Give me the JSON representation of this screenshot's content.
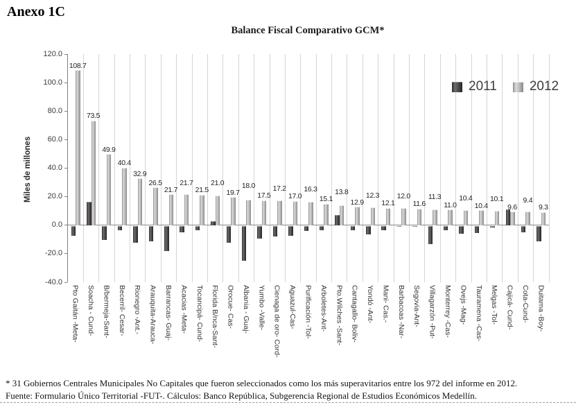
{
  "page": {
    "heading": "Anexo 1C"
  },
  "footnotes": {
    "line1": "* 31 Gobiernos Centrales Municipales No Capitales que fueron seleccionados como los más superavitarios entre los 972 del informe en 2012.",
    "line2": "Fuente: Formulario Único Territorial -FUT-. Cálculos: Banco República, Subgerencia Regional de Estudios Económicos Medellín."
  },
  "chart_data": {
    "type": "bar",
    "title": "Balance Fiscal Comparativo GCM*",
    "xlabel": "",
    "ylabel": "Miles de millones",
    "ylim": [
      -40,
      120
    ],
    "yticks": [
      120,
      100,
      80,
      60,
      40,
      20,
      0,
      -20,
      -40
    ],
    "grid": "vertical category separators only",
    "legend_position": "top-right inside plot",
    "categories": [
      "Pto Gaitán -Meta-",
      "Soacha - Cund-",
      "B/bermeja-Sant-",
      "Becerril- Cesar-",
      "Rionegro -Ant.-",
      "Arauquita-Arauca-",
      "Barrancas- Guaj-",
      "Acacias -Meta-",
      "Tocancipá- Cund-",
      "Florida B/nca-Sant-",
      "Orocue- Cas-",
      "Albania - Guaj-",
      "Yumbo -Valle-",
      "Cienaga de oro- Cord-",
      "Aguazul-Cas-",
      "Purificación -Tol-",
      "Arboletes-Ant-",
      "Pto.Wilches -Sant-",
      "Cantagallo- Boliv-",
      "Yondó -Ant-",
      "Mani- Cas.-",
      "Barbacoas -Nar-",
      "Segovia-Ant-",
      "Villagarzón -Put-",
      "Monterrey -Cas-",
      "Ovejs -Mag-",
      "Tauramena -Cas-",
      "Melgas -Tol-",
      "Cajicá- Cund-",
      "Cota-Cund-",
      "Duitama -Boy-"
    ],
    "series": [
      {
        "name": "2011",
        "color": "#454243",
        "data_labels": false,
        "values": [
          -7,
          16.4,
          -10,
          -3,
          -12,
          -11,
          -17.5,
          -4.5,
          -3,
          3,
          -12,
          -24.5,
          -9,
          -7.5,
          -7,
          -3.5,
          -3,
          7,
          -3,
          -6,
          -3,
          -0.5,
          -0.5,
          -13,
          -3,
          -5.5,
          -5,
          -1,
          10.9,
          -4.5,
          -11
        ]
      },
      {
        "name": "2012",
        "color": "#b7b5b5",
        "data_labels": true,
        "values": [
          108.7,
          73.5,
          49.9,
          40.4,
          32.9,
          26.5,
          21.7,
          21.7,
          21.5,
          21.0,
          19.7,
          18.0,
          17.5,
          17.2,
          17.0,
          16.3,
          15.1,
          13.8,
          12.9,
          12.3,
          12.1,
          12.0,
          11.6,
          11.3,
          11.0,
          10.4,
          10.4,
          10.1,
          9.6,
          9.4,
          9.3
        ]
      }
    ]
  }
}
